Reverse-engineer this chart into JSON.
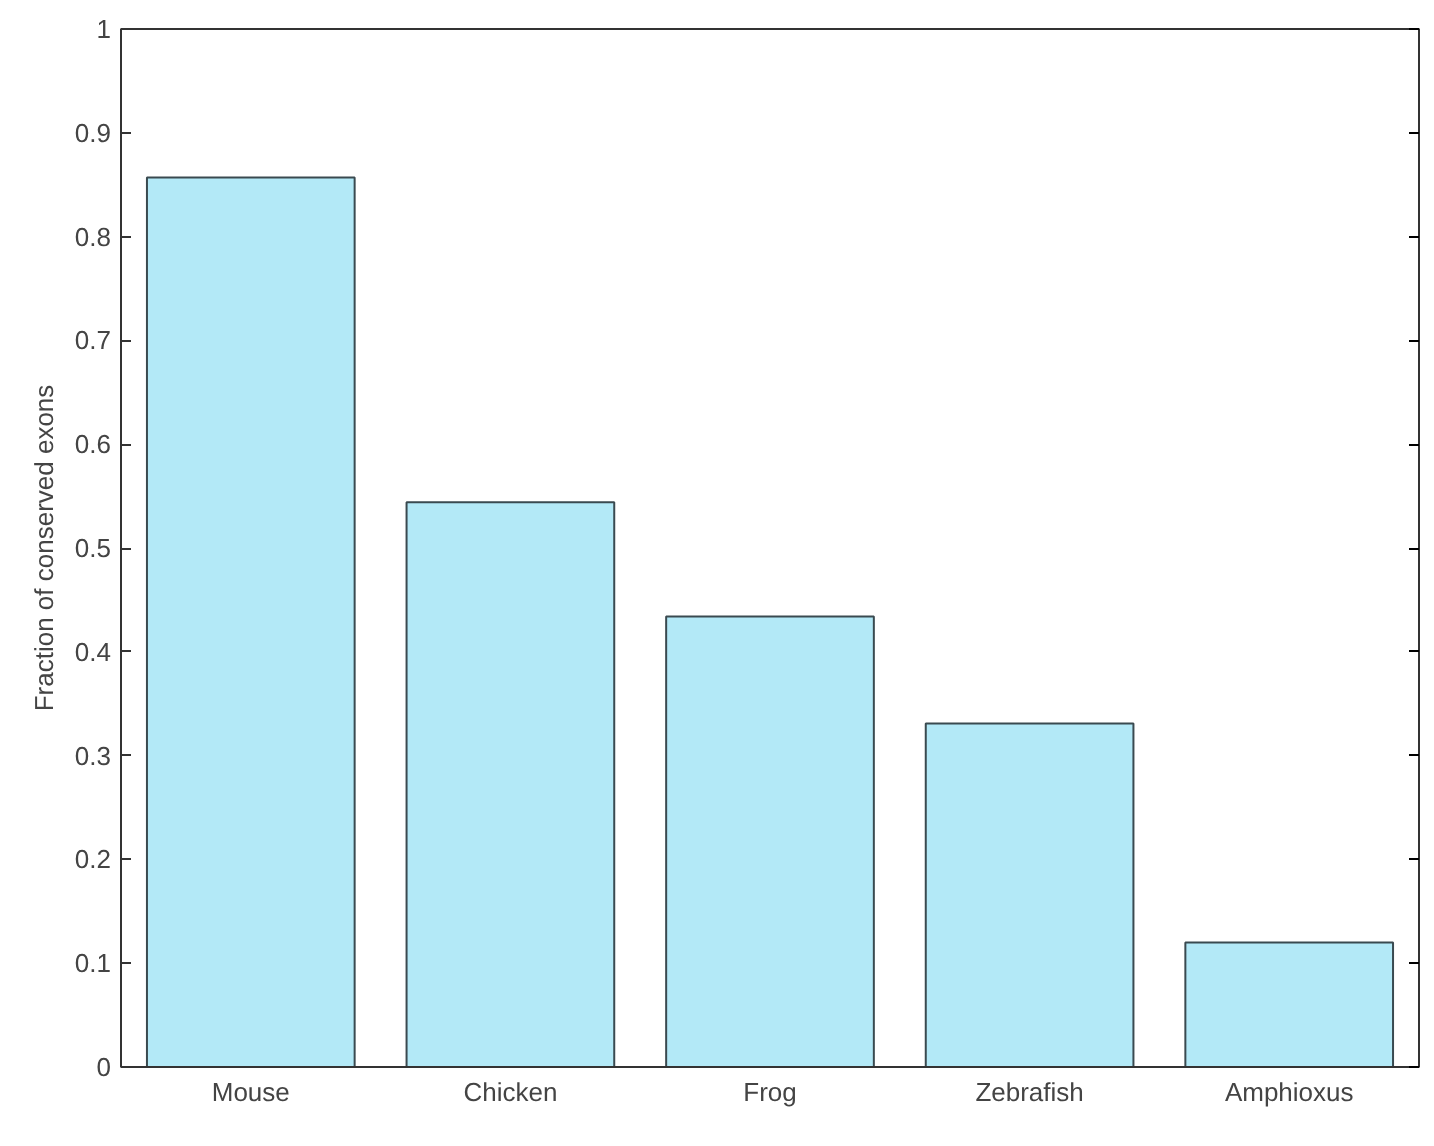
{
  "chart_data": {
    "type": "bar",
    "ylabel": "Fraction of conserved exons",
    "categories": [
      "Mouse",
      "Chicken",
      "Frog",
      "Zebrafish",
      "Amphioxus"
    ],
    "values": [
      0.857,
      0.544,
      0.434,
      0.331,
      0.12
    ],
    "color": "#b3e9f7",
    "ylim": [
      0,
      1
    ],
    "yticks": [
      0,
      0.1,
      0.2,
      0.3,
      0.4,
      0.5,
      0.6,
      0.7,
      0.8,
      0.9,
      1
    ],
    "grid": false
  }
}
